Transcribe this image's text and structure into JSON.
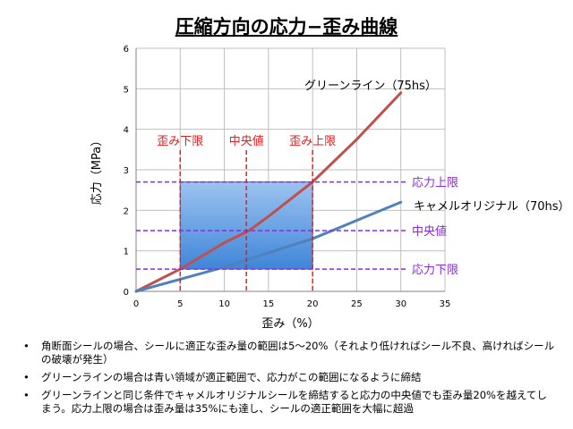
{
  "title": "圧縮方向の応力−歪み曲線",
  "chart_data": {
    "type": "line",
    "xlabel": "歪み（%）",
    "ylabel": "応力（MPa）",
    "xlim": [
      0,
      35
    ],
    "ylim": [
      0,
      6
    ],
    "x_ticks": [
      0,
      5,
      10,
      15,
      20,
      25,
      30,
      35
    ],
    "y_ticks": [
      0,
      1,
      2,
      3,
      4,
      5,
      6
    ],
    "grid": true,
    "series": [
      {
        "name": "グリーンライン（75hs）",
        "color": "#c0504d",
        "x": [
          0,
          5,
          10,
          12.8,
          15,
          20,
          25,
          30
        ],
        "y": [
          0,
          0.55,
          1.2,
          1.5,
          1.85,
          2.7,
          3.75,
          4.9
        ]
      },
      {
        "name": "キャメルオリジナル（70hs）",
        "color": "#4f81bd",
        "x": [
          0,
          5,
          10,
          15,
          20,
          25,
          30
        ],
        "y": [
          0,
          0.3,
          0.6,
          0.95,
          1.3,
          1.75,
          2.2
        ]
      }
    ],
    "vertical_lines": [
      {
        "label": "歪み下限",
        "x": 5
      },
      {
        "label": "中央値",
        "x": 12.5
      },
      {
        "label": "歪み上限",
        "x": 20
      }
    ],
    "horizontal_lines": [
      {
        "label": "応力上限",
        "y": 2.7
      },
      {
        "label": "中央値",
        "y": 1.5
      },
      {
        "label": "応力下限",
        "y": 0.55
      }
    ],
    "region": {
      "x": [
        5,
        20
      ],
      "y": [
        0.55,
        2.7
      ],
      "color": "#4f8fe0"
    },
    "vline_color": "#e02020",
    "hline_color": "#8a2be2",
    "label_color_v": "#e02020",
    "label_color_h": "#8a2be2"
  },
  "notes": [
    "角断面シールの場合、シールに適正な歪み量の範囲は5〜20%（それより低ければシール不良、高ければシールの破壊が発生）",
    "グリーンラインの場合は青い領域が適正範囲で、応力がこの範囲になるように締結",
    "グリーンラインと同じ条件でキャメルオリジナルシールを締結すると応力の中央値でも歪み量20%を越えてしまう。応力上限の場合は歪み量は35%にも達し、シールの適正範囲を大幅に超過"
  ]
}
